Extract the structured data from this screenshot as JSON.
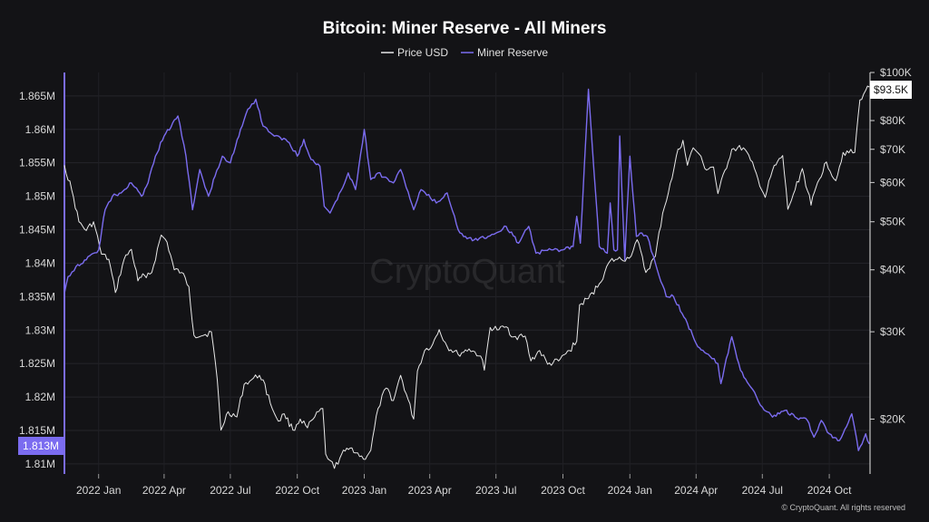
{
  "chart_data": {
    "type": "line",
    "title": "Bitcoin: Miner Reserve - All Miners",
    "legend": {
      "placement": "top-center",
      "entries": [
        "Price USD",
        "Miner Reserve"
      ]
    },
    "colors": {
      "background": "#131316",
      "price": "#e8e8e8",
      "reserve": "#7b6cf0",
      "grid": "#26262b"
    },
    "grid": true,
    "x_tick_labels": [
      "2022 Jan",
      "2022 Apr",
      "2022 Jul",
      "2022 Oct",
      "2023 Jan",
      "2023 Apr",
      "2023 Jul",
      "2023 Oct",
      "2024 Jan",
      "2024 Apr",
      "2024 Jul",
      "2024 Oct"
    ],
    "x_tick_dates": [
      "2022-01-01",
      "2022-04-01",
      "2022-07-01",
      "2022-10-01",
      "2023-01-01",
      "2023-04-01",
      "2023-07-01",
      "2023-10-01",
      "2024-01-01",
      "2024-04-01",
      "2024-07-01",
      "2024-10-01"
    ],
    "xlim": [
      "2021-11-15",
      "2024-11-26"
    ],
    "left_axis": {
      "label": "",
      "scale": "linear",
      "ylim": [
        1.8085,
        1.8685
      ],
      "ticks": [
        1.81,
        1.815,
        1.82,
        1.825,
        1.83,
        1.835,
        1.84,
        1.845,
        1.85,
        1.855,
        1.86,
        1.865
      ],
      "tick_labels": [
        "1.81M",
        "1.815M",
        "1.82M",
        "1.825M",
        "1.83M",
        "1.835M",
        "1.84M",
        "1.845M",
        "1.85M",
        "1.855M",
        "1.86M",
        "1.865M"
      ],
      "current_value_label": "1.813M"
    },
    "right_axis": {
      "label": "",
      "scale": "log",
      "ylim": [
        15500,
        100000
      ],
      "ticks": [
        20000,
        30000,
        40000,
        50000,
        60000,
        70000,
        80000,
        90000,
        100000
      ],
      "tick_labels": [
        "$20K",
        "$30K",
        "$40K",
        "$50K",
        "$60K",
        "$70K",
        "$80K",
        "$90K",
        "$100K"
      ],
      "current_value_label": "$93.5K"
    },
    "series": [
      {
        "name": "Price USD",
        "axis": "right",
        "x": [
          "2021-11-15",
          "2021-11-25",
          "2021-12-05",
          "2021-12-15",
          "2021-12-25",
          "2022-01-05",
          "2022-01-15",
          "2022-01-24",
          "2022-02-05",
          "2022-02-15",
          "2022-02-24",
          "2022-03-05",
          "2022-03-15",
          "2022-03-28",
          "2022-04-05",
          "2022-04-15",
          "2022-04-25",
          "2022-05-05",
          "2022-05-12",
          "2022-05-25",
          "2022-06-05",
          "2022-06-13",
          "2022-06-18",
          "2022-06-28",
          "2022-07-10",
          "2022-07-20",
          "2022-07-30",
          "2022-08-10",
          "2022-08-15",
          "2022-08-25",
          "2022-09-05",
          "2022-09-13",
          "2022-09-25",
          "2022-10-05",
          "2022-10-15",
          "2022-10-25",
          "2022-11-05",
          "2022-11-09",
          "2022-11-15",
          "2022-11-21",
          "2022-12-01",
          "2022-12-15",
          "2022-12-31",
          "2023-01-10",
          "2023-01-20",
          "2023-01-31",
          "2023-02-10",
          "2023-02-20",
          "2023-03-10",
          "2023-03-15",
          "2023-03-25",
          "2023-04-05",
          "2023-04-14",
          "2023-04-25",
          "2023-05-10",
          "2023-05-25",
          "2023-06-10",
          "2023-06-15",
          "2023-06-23",
          "2023-07-05",
          "2023-07-15",
          "2023-07-25",
          "2023-08-10",
          "2023-08-18",
          "2023-08-30",
          "2023-09-10",
          "2023-09-25",
          "2023-10-10",
          "2023-10-20",
          "2023-10-24",
          "2023-11-05",
          "2023-11-20",
          "2023-12-05",
          "2023-12-15",
          "2023-12-31",
          "2024-01-11",
          "2024-01-23",
          "2024-02-05",
          "2024-02-15",
          "2024-02-28",
          "2024-03-05",
          "2024-03-14",
          "2024-03-20",
          "2024-03-28",
          "2024-04-05",
          "2024-04-13",
          "2024-04-25",
          "2024-05-01",
          "2024-05-20",
          "2024-06-05",
          "2024-06-15",
          "2024-06-25",
          "2024-07-05",
          "2024-07-15",
          "2024-07-29",
          "2024-08-05",
          "2024-08-15",
          "2024-08-25",
          "2024-09-06",
          "2024-09-15",
          "2024-09-27",
          "2024-10-10",
          "2024-10-20",
          "2024-11-05",
          "2024-11-12",
          "2024-11-20",
          "2024-11-25"
        ],
        "y": [
          65000,
          58000,
          50000,
          48000,
          50000,
          43000,
          42000,
          36000,
          42000,
          44000,
          38000,
          39000,
          39500,
          47000,
          45500,
          40000,
          39500,
          37000,
          29500,
          29500,
          30000,
          24000,
          19000,
          20700,
          20200,
          23500,
          24000,
          24500,
          24000,
          21500,
          19800,
          20500,
          19000,
          20000,
          19200,
          20200,
          21000,
          17000,
          16500,
          15900,
          17000,
          17500,
          16600,
          17300,
          21000,
          23100,
          21800,
          24500,
          20000,
          25000,
          27500,
          28300,
          30300,
          28000,
          27000,
          27700,
          26800,
          25100,
          30600,
          30300,
          30700,
          29300,
          29400,
          26200,
          27500,
          25800,
          26200,
          27500,
          28700,
          34000,
          35000,
          37500,
          41700,
          42000,
          42200,
          46000,
          39500,
          42600,
          52000,
          61200,
          68000,
          73000,
          65000,
          70500,
          68500,
          64000,
          64500,
          57000,
          70000,
          70500,
          66500,
          61000,
          56000,
          63500,
          68000,
          53000,
          58000,
          64000,
          54000,
          60000,
          66000,
          60500,
          69000,
          69000,
          88000,
          92000,
          93500
        ]
      },
      {
        "name": "Miner Reserve",
        "axis": "left",
        "x": [
          "2021-11-15",
          "2021-11-20",
          "2021-12-01",
          "2021-12-15",
          "2022-01-01",
          "2022-01-10",
          "2022-01-20",
          "2022-02-01",
          "2022-02-15",
          "2022-03-01",
          "2022-03-10",
          "2022-03-20",
          "2022-04-01",
          "2022-04-20",
          "2022-05-01",
          "2022-05-10",
          "2022-05-20",
          "2022-06-01",
          "2022-06-10",
          "2022-06-20",
          "2022-07-01",
          "2022-07-15",
          "2022-07-25",
          "2022-08-05",
          "2022-08-15",
          "2022-08-25",
          "2022-09-05",
          "2022-09-20",
          "2022-10-01",
          "2022-10-10",
          "2022-10-20",
          "2022-11-01",
          "2022-11-07",
          "2022-11-15",
          "2022-11-25",
          "2022-12-10",
          "2022-12-20",
          "2023-01-01",
          "2023-01-10",
          "2023-01-20",
          "2023-02-10",
          "2023-02-20",
          "2023-03-10",
          "2023-03-20",
          "2023-04-10",
          "2023-04-25",
          "2023-05-10",
          "2023-05-20",
          "2023-06-01",
          "2023-06-20",
          "2023-07-01",
          "2023-07-15",
          "2023-08-01",
          "2023-08-15",
          "2023-08-25",
          "2023-09-15",
          "2023-10-01",
          "2023-10-15",
          "2023-10-20",
          "2023-10-25",
          "2023-11-05",
          "2023-11-20",
          "2023-12-01",
          "2023-12-05",
          "2023-12-10",
          "2023-12-15",
          "2023-12-18",
          "2023-12-25",
          "2024-01-01",
          "2024-01-10",
          "2024-01-15",
          "2024-01-25",
          "2024-02-05",
          "2024-02-20",
          "2024-03-01",
          "2024-03-20",
          "2024-04-01",
          "2024-04-15",
          "2024-05-01",
          "2024-05-05",
          "2024-05-20",
          "2024-06-01",
          "2024-06-15",
          "2024-07-01",
          "2024-07-15",
          "2024-08-01",
          "2024-08-15",
          "2024-09-01",
          "2024-09-10",
          "2024-09-20",
          "2024-10-01",
          "2024-10-15",
          "2024-11-01",
          "2024-11-10",
          "2024-11-20",
          "2024-11-25"
        ],
        "y": [
          1.8355,
          1.838,
          1.8395,
          1.8405,
          1.842,
          1.848,
          1.85,
          1.8505,
          1.852,
          1.85,
          1.852,
          1.856,
          1.859,
          1.862,
          1.856,
          1.848,
          1.854,
          1.85,
          1.853,
          1.856,
          1.855,
          1.86,
          1.863,
          1.8645,
          1.8605,
          1.8595,
          1.859,
          1.858,
          1.856,
          1.8585,
          1.8555,
          1.8545,
          1.8485,
          1.8475,
          1.8495,
          1.8535,
          1.851,
          1.86,
          1.8525,
          1.8535,
          1.852,
          1.854,
          1.848,
          1.851,
          1.849,
          1.8505,
          1.845,
          1.844,
          1.8435,
          1.844,
          1.8445,
          1.8455,
          1.843,
          1.8455,
          1.8415,
          1.842,
          1.842,
          1.8425,
          1.847,
          1.843,
          1.866,
          1.8425,
          1.8415,
          1.849,
          1.842,
          1.842,
          1.859,
          1.8405,
          1.856,
          1.844,
          1.8445,
          1.844,
          1.84,
          1.835,
          1.835,
          1.831,
          1.828,
          1.8265,
          1.825,
          1.822,
          1.829,
          1.824,
          1.8215,
          1.8185,
          1.817,
          1.818,
          1.817,
          1.8165,
          1.814,
          1.8165,
          1.8145,
          1.8135,
          1.8175,
          1.812,
          1.8145,
          1.813
        ]
      }
    ]
  },
  "branding": {
    "watermark": "CryptoQuant",
    "copyright": "© CryptoQuant. All rights reserved"
  }
}
